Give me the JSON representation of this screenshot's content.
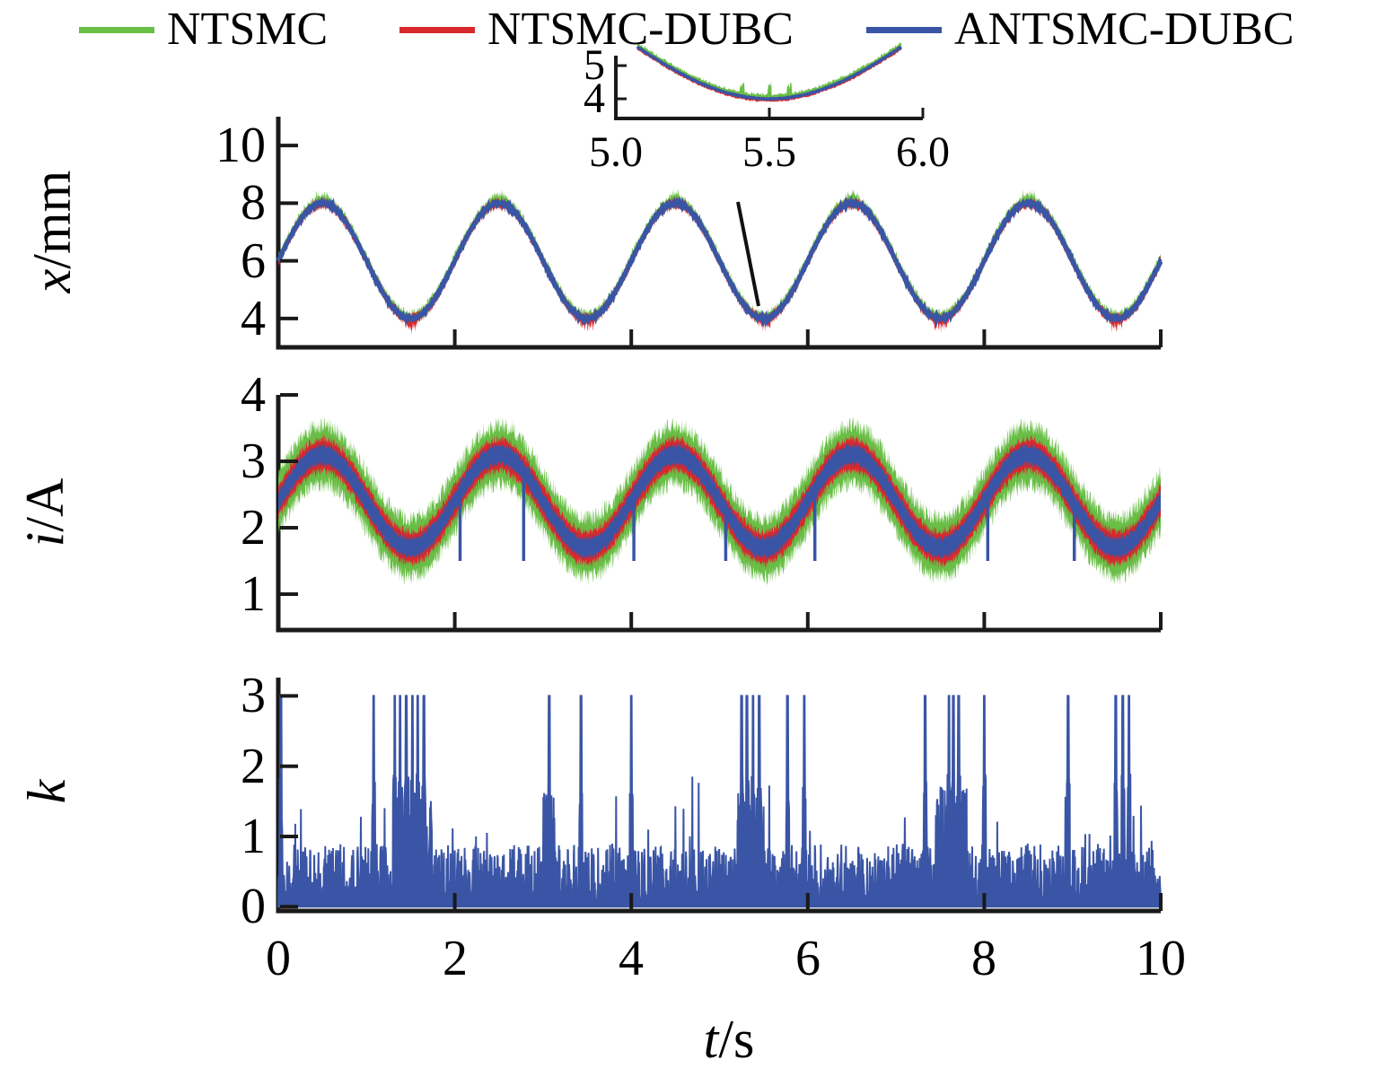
{
  "figure": {
    "background": "#ffffff",
    "text_color": "#000000",
    "axis_color": "#1a1a1a"
  },
  "legend": {
    "items": [
      {
        "label": "NTSMC",
        "color": "#69be46"
      },
      {
        "label": "NTSMC-DUBC",
        "color": "#d9282d"
      },
      {
        "label": "ANTSMC-DUBC",
        "color": "#3a55a5"
      }
    ]
  },
  "xaxis": {
    "label_var": "t",
    "label_unit": "/s",
    "range": [
      0,
      10
    ],
    "ticks": [
      {
        "v": 0,
        "label": "0"
      },
      {
        "v": 2,
        "label": "2"
      },
      {
        "v": 4,
        "label": "4"
      },
      {
        "v": 6,
        "label": "6"
      },
      {
        "v": 8,
        "label": "8"
      },
      {
        "v": 10,
        "label": "10"
      }
    ]
  },
  "chart_data": [
    {
      "id": "displacement",
      "type": "line",
      "ylabel_var": "x",
      "ylabel_unit": "/mm",
      "xlabel": "t/s",
      "xlim": [
        0,
        10
      ],
      "ylim": [
        3,
        11
      ],
      "yticks": [
        {
          "v": 4,
          "label": "4"
        },
        {
          "v": 6,
          "label": "6"
        },
        {
          "v": 8,
          "label": "8"
        },
        {
          "v": 10,
          "label": "10"
        }
      ],
      "xticks_unlabeled": [
        2,
        4,
        6,
        8,
        10
      ],
      "waveform": {
        "shape": "sine",
        "mean": 6,
        "amplitude": 2,
        "period_s": 2,
        "min": 4,
        "max": 8,
        "start_value": 6
      },
      "series": [
        {
          "name": "NTSMC",
          "color": "#69be46",
          "style": "band",
          "bias": 0.06,
          "noise_base": 0.1,
          "noise_rand": 0.2
        },
        {
          "name": "NTSMC-DUBC",
          "color": "#d9282d",
          "style": "band",
          "bias": -0.02,
          "noise_base": 0.09,
          "noise_rand": 0.17
        },
        {
          "name": "ANTSMC-DUBC",
          "color": "#3a55a5",
          "style": "line",
          "bias": 0,
          "noise_base": 0.02,
          "noise_rand": 0.02
        }
      ],
      "inset": {
        "xlim": [
          5.0,
          6.0
        ],
        "yticks": [
          {
            "v": 5,
            "label": "5"
          },
          {
            "v": 4,
            "label": "4"
          }
        ],
        "xticks": [
          {
            "v": 5.0,
            "label": "5.0"
          },
          {
            "v": 5.5,
            "label": "5.5"
          },
          {
            "v": 6.0,
            "label": "6.0"
          }
        ],
        "note": "zoom of trough near t=5.5 where x dips to about 4"
      }
    },
    {
      "id": "current",
      "type": "line",
      "ylabel_var": "i",
      "ylabel_unit": "/A",
      "xlabel": "t/s",
      "xlim": [
        0,
        10
      ],
      "ylim": [
        0.46,
        4
      ],
      "yticks": [
        {
          "v": 1,
          "label": "1"
        },
        {
          "v": 2,
          "label": "2"
        },
        {
          "v": 3,
          "label": "3"
        },
        {
          "v": 4,
          "label": "4"
        }
      ],
      "xticks_unlabeled": [
        2,
        4,
        6,
        8,
        10
      ],
      "waveform": {
        "shape": "sine",
        "mean": 2.4,
        "amplitude": 0.7,
        "period_s": 2,
        "min": 1.7,
        "max": 3.1,
        "start_value": 2.4
      },
      "series": [
        {
          "name": "NTSMC",
          "color": "#69be46",
          "style": "band",
          "bias": 0,
          "noise_base": 0.32,
          "noise_rand": 0.26
        },
        {
          "name": "NTSMC-DUBC",
          "color": "#d9282d",
          "style": "band",
          "bias": 0,
          "noise_base": 0.18,
          "noise_rand": 0.13
        },
        {
          "name": "ANTSMC-DUBC",
          "color": "#3a55a5",
          "style": "band",
          "bias": 0,
          "noise_base": 0.1,
          "noise_rand": 0.09,
          "downspikes": [
            2.06,
            2.78,
            4.03,
            5.07,
            6.08,
            8.04,
            9.02
          ],
          "downspike_value": 1.5
        }
      ]
    },
    {
      "id": "switching-gain",
      "type": "line",
      "ylabel_var": "k",
      "ylabel_unit": "",
      "xlabel": "t/s",
      "xlim": [
        0,
        10
      ],
      "ylim": [
        -0.06,
        3.26
      ],
      "yticks": [
        {
          "v": 0,
          "label": "0"
        },
        {
          "v": 1,
          "label": "1"
        },
        {
          "v": 2,
          "label": "2"
        },
        {
          "v": 3,
          "label": "3"
        }
      ],
      "xticks_unlabeled": [
        2,
        4,
        6,
        8,
        10
      ],
      "series": [
        {
          "name": "ANTSMC-DUBC",
          "color": "#3a55a5",
          "style": "spiky_fill",
          "baseline_range": [
            0,
            1.2
          ],
          "saturation": 3,
          "saturation_spike_times": [
            0.03,
            1.08,
            1.32,
            1.38,
            1.45,
            1.52,
            1.58,
            1.65,
            3.07,
            3.43,
            4.0,
            5.25,
            5.31,
            5.38,
            5.45,
            5.77,
            5.96,
            7.33,
            7.6,
            7.65,
            7.71,
            8.0,
            8.95,
            9.49,
            9.57,
            9.64
          ],
          "burst_windows": [
            [
              1.3,
              1.75
            ],
            [
              3.0,
              3.15
            ],
            [
              5.2,
              5.5
            ],
            [
              7.45,
              7.8
            ]
          ]
        }
      ]
    }
  ]
}
